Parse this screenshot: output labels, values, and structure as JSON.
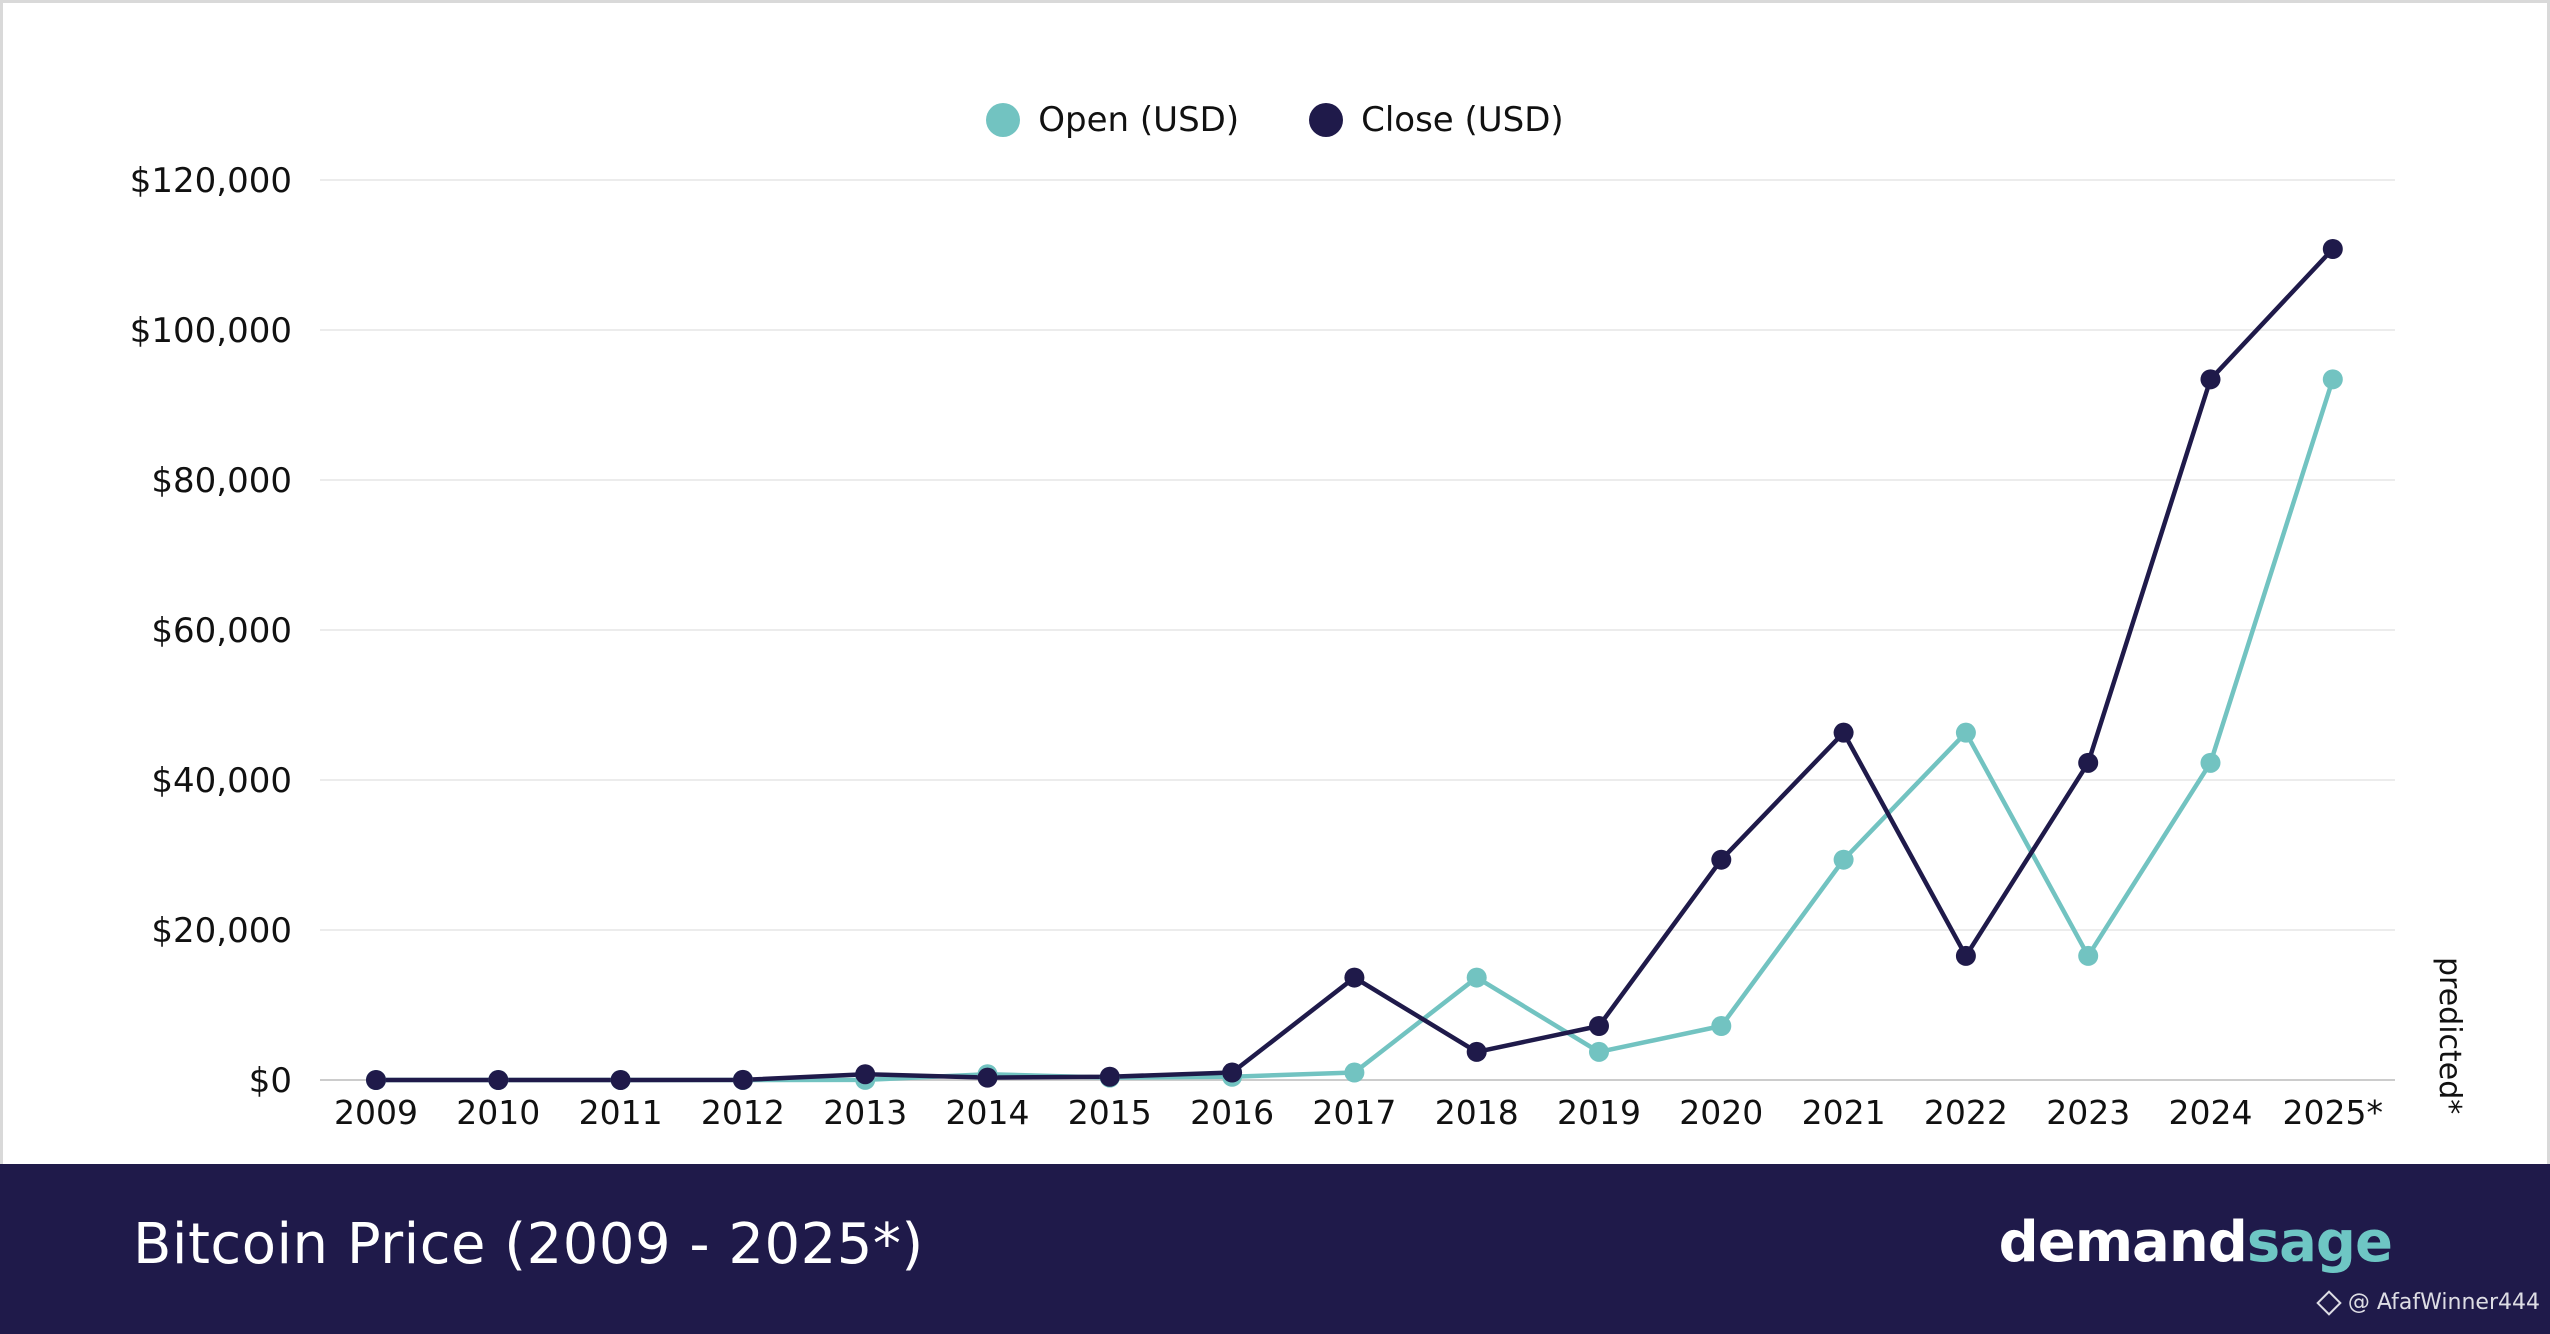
{
  "legend": {
    "open_label": "Open (USD)",
    "close_label": "Close (USD)"
  },
  "colors": {
    "open": "#72c3c1",
    "close": "#1f1a4a",
    "grid": "#e6e6e6",
    "axis": "#cccccc",
    "footer_bg": "#1f1a4a"
  },
  "footer": {
    "title": "Bitcoin Price (2009 - 2025*)",
    "brand_part1": "demand",
    "brand_part2": "sage",
    "watermark": "@ AfafWinner444"
  },
  "chart_data": {
    "type": "line",
    "categories": [
      "2009",
      "2010",
      "2011",
      "2012",
      "2013",
      "2014",
      "2015",
      "2016",
      "2017",
      "2018",
      "2019",
      "2020",
      "2021",
      "2022",
      "2023",
      "2024",
      "2025*"
    ],
    "series": [
      {
        "name": "Open (USD)",
        "values": [
          0,
          0,
          0,
          5,
          13,
          770,
          314,
          434,
          998,
          13657,
          3746,
          7200,
          29374,
          46311,
          16547,
          42288,
          93425
        ]
      },
      {
        "name": "Close (USD)",
        "values": [
          0,
          0,
          5,
          13,
          770,
          314,
          434,
          998,
          13657,
          3746,
          7200,
          29374,
          46311,
          16547,
          42288,
          93425,
          110800
        ]
      }
    ],
    "y_ticks": [
      "$0",
      "$20,000",
      "$40,000",
      "$60,000",
      "$80,000",
      "$100,000",
      "$120,000"
    ],
    "y_tick_values": [
      0,
      20000,
      40000,
      60000,
      80000,
      100000,
      120000
    ],
    "ylim": [
      0,
      120000
    ],
    "annotation": "predicted*",
    "grid": true,
    "legend_position": "top-center"
  }
}
